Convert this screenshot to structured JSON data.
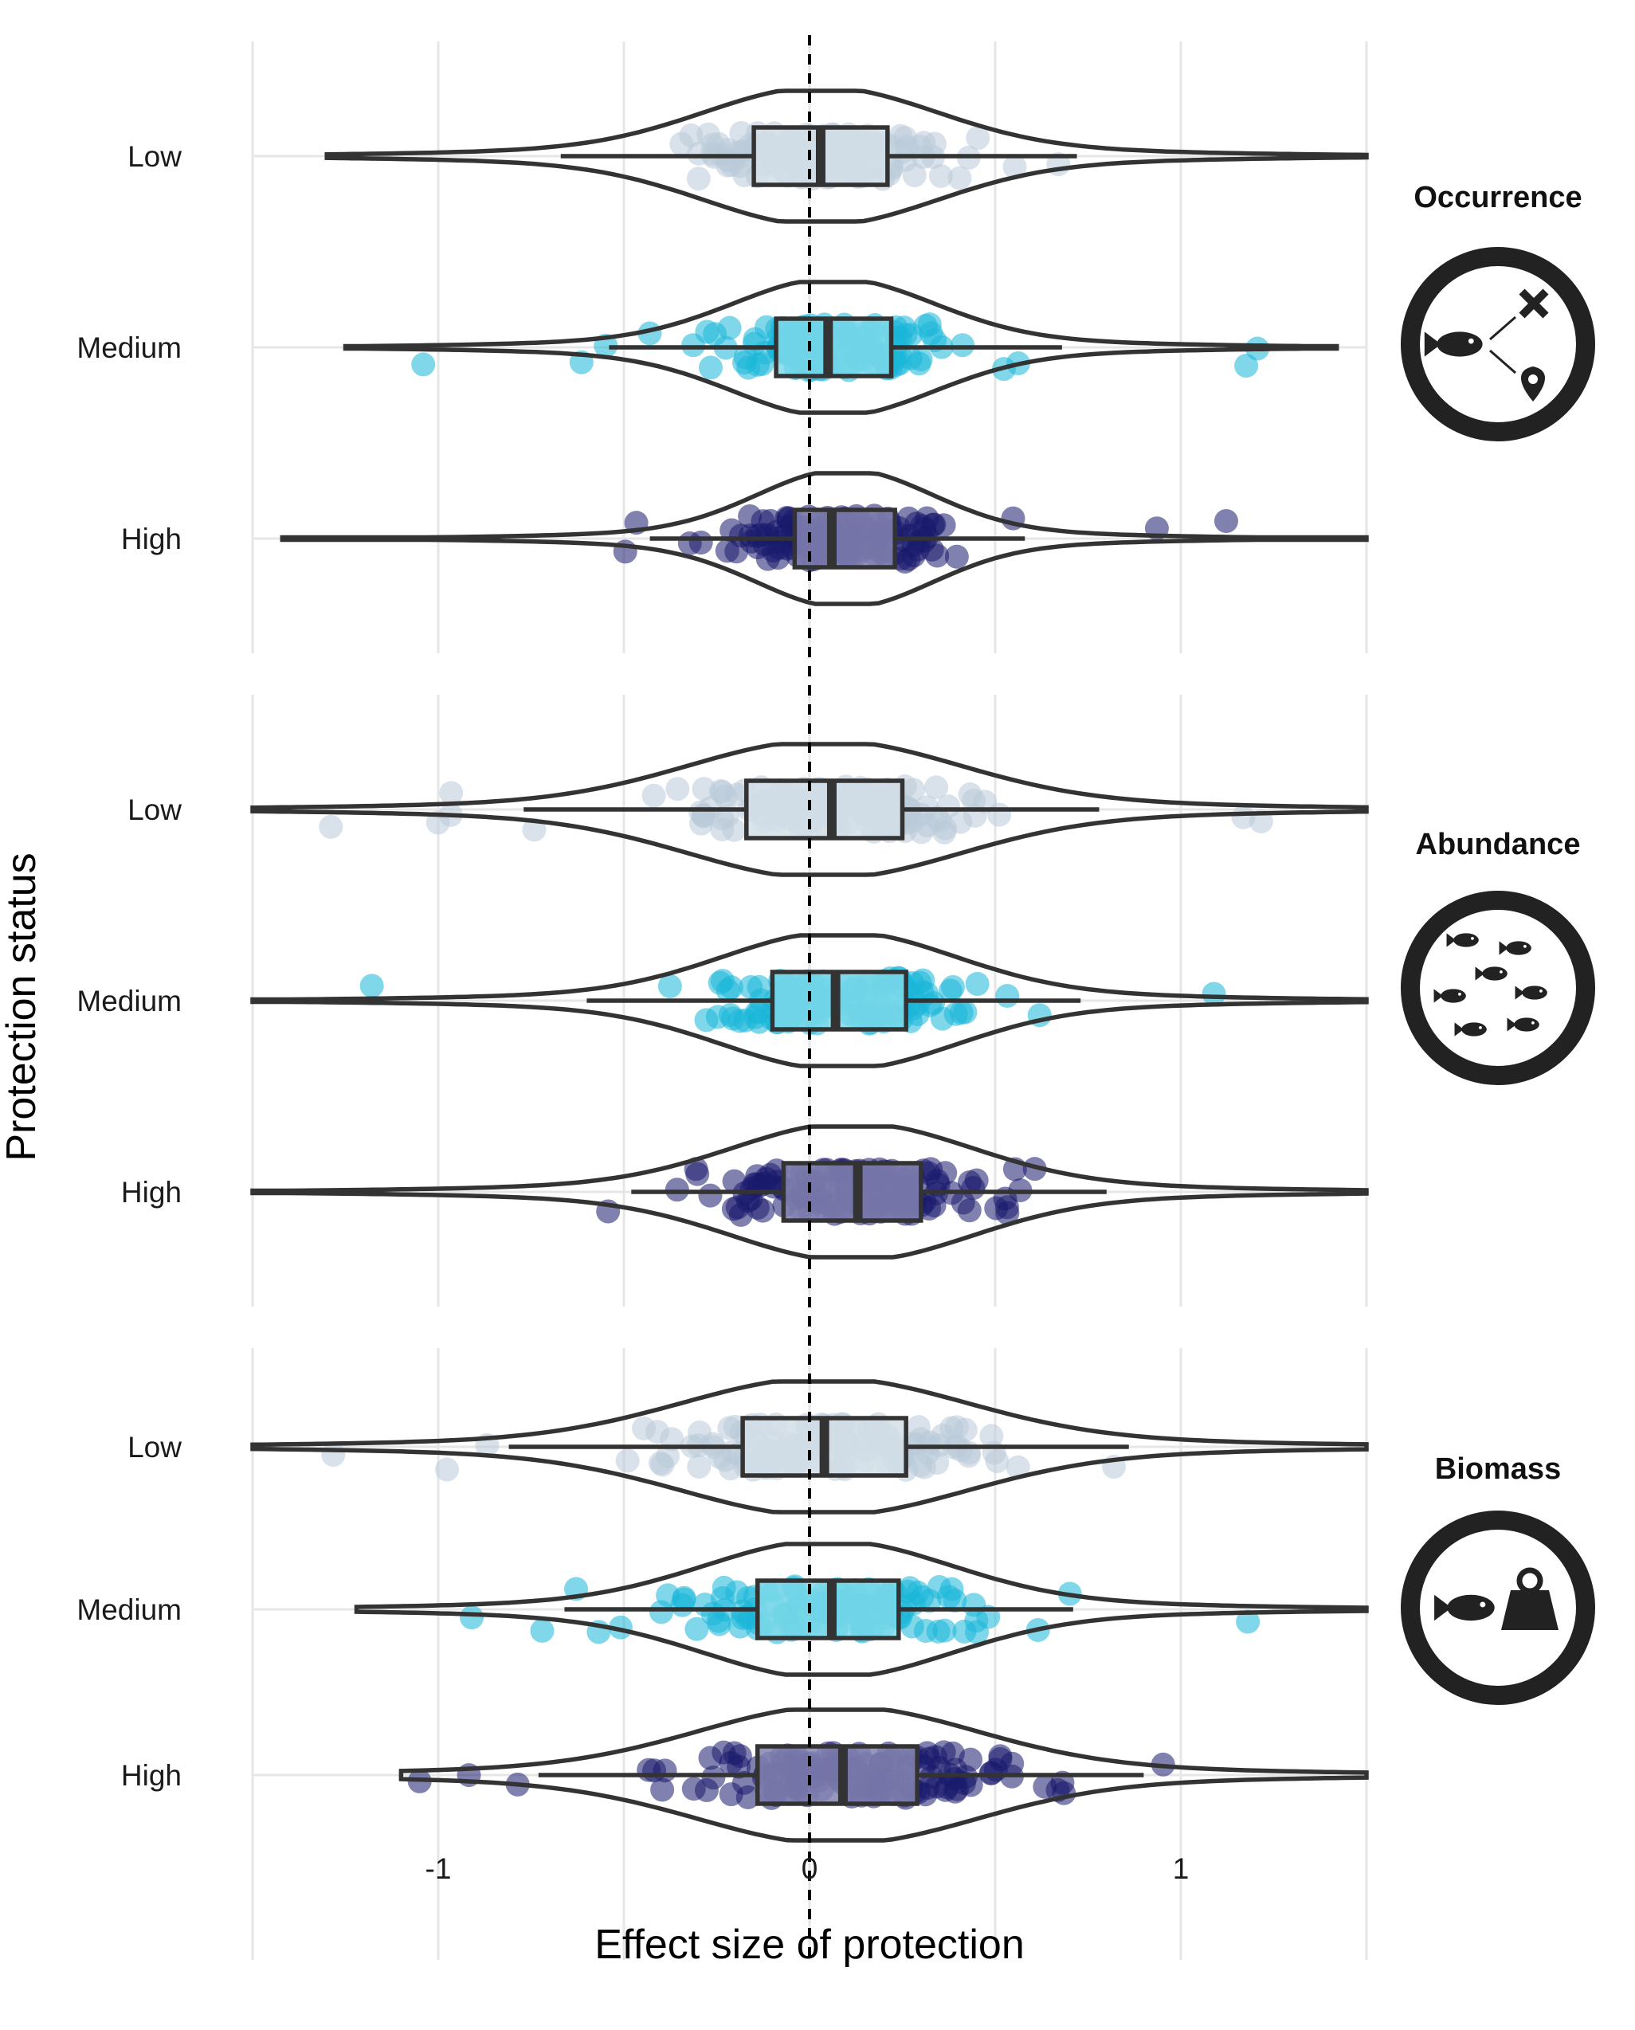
{
  "chart_data": {
    "type": "violin",
    "xlabel": "Effect size of protection",
    "ylabel": "Protection status",
    "xlim": [
      -1.5,
      1.5
    ],
    "x_ticks": [
      -1,
      0,
      1
    ],
    "x_tick_labels": [
      "-1",
      "0",
      "1"
    ],
    "reference_line": {
      "x": 0,
      "style": "dashed"
    },
    "grid": true,
    "colors": {
      "Low": "#b9cbd9",
      "Medium": "#19b7d8",
      "High": "#1a1a6e"
    },
    "box_fill": {
      "Low": "#d3dfe8",
      "Medium": "#7fd9ea",
      "High": "#8585b3"
    },
    "panels": [
      {
        "title": "Occurrence",
        "icon": "fish-movement-icon",
        "groups": [
          {
            "name": "Low",
            "q1": -0.15,
            "median": 0.03,
            "q3": 0.21,
            "whisker_low": -0.67,
            "whisker_high": 0.72,
            "min": -1.3,
            "max": 1.5
          },
          {
            "name": "Medium",
            "q1": -0.09,
            "median": 0.05,
            "q3": 0.22,
            "whisker_low": -0.54,
            "whisker_high": 0.68,
            "min": -1.25,
            "max": 1.42
          },
          {
            "name": "High",
            "q1": -0.04,
            "median": 0.06,
            "q3": 0.23,
            "whisker_low": -0.43,
            "whisker_high": 0.58,
            "min": -1.42,
            "max": 1.5
          }
        ]
      },
      {
        "title": "Abundance",
        "icon": "fish-school-icon",
        "groups": [
          {
            "name": "Low",
            "q1": -0.17,
            "median": 0.06,
            "q3": 0.25,
            "whisker_low": -0.77,
            "whisker_high": 0.78,
            "min": -1.5,
            "max": 1.5
          },
          {
            "name": "Medium",
            "q1": -0.1,
            "median": 0.07,
            "q3": 0.26,
            "whisker_low": -0.6,
            "whisker_high": 0.73,
            "min": -1.5,
            "max": 1.5
          },
          {
            "name": "High",
            "q1": -0.07,
            "median": 0.13,
            "q3": 0.3,
            "whisker_low": -0.48,
            "whisker_high": 0.8,
            "min": -1.5,
            "max": 1.5
          }
        ]
      },
      {
        "title": "Biomass",
        "icon": "fish-weight-icon",
        "groups": [
          {
            "name": "Low",
            "q1": -0.18,
            "median": 0.04,
            "q3": 0.26,
            "whisker_low": -0.81,
            "whisker_high": 0.86,
            "min": -1.5,
            "max": 1.5
          },
          {
            "name": "Medium",
            "q1": -0.14,
            "median": 0.06,
            "q3": 0.24,
            "whisker_low": -0.66,
            "whisker_high": 0.71,
            "min": -1.22,
            "max": 1.5
          },
          {
            "name": "High",
            "q1": -0.14,
            "median": 0.09,
            "q3": 0.29,
            "whisker_low": -0.73,
            "whisker_high": 0.9,
            "min": -1.1,
            "max": 1.5
          }
        ]
      }
    ]
  }
}
